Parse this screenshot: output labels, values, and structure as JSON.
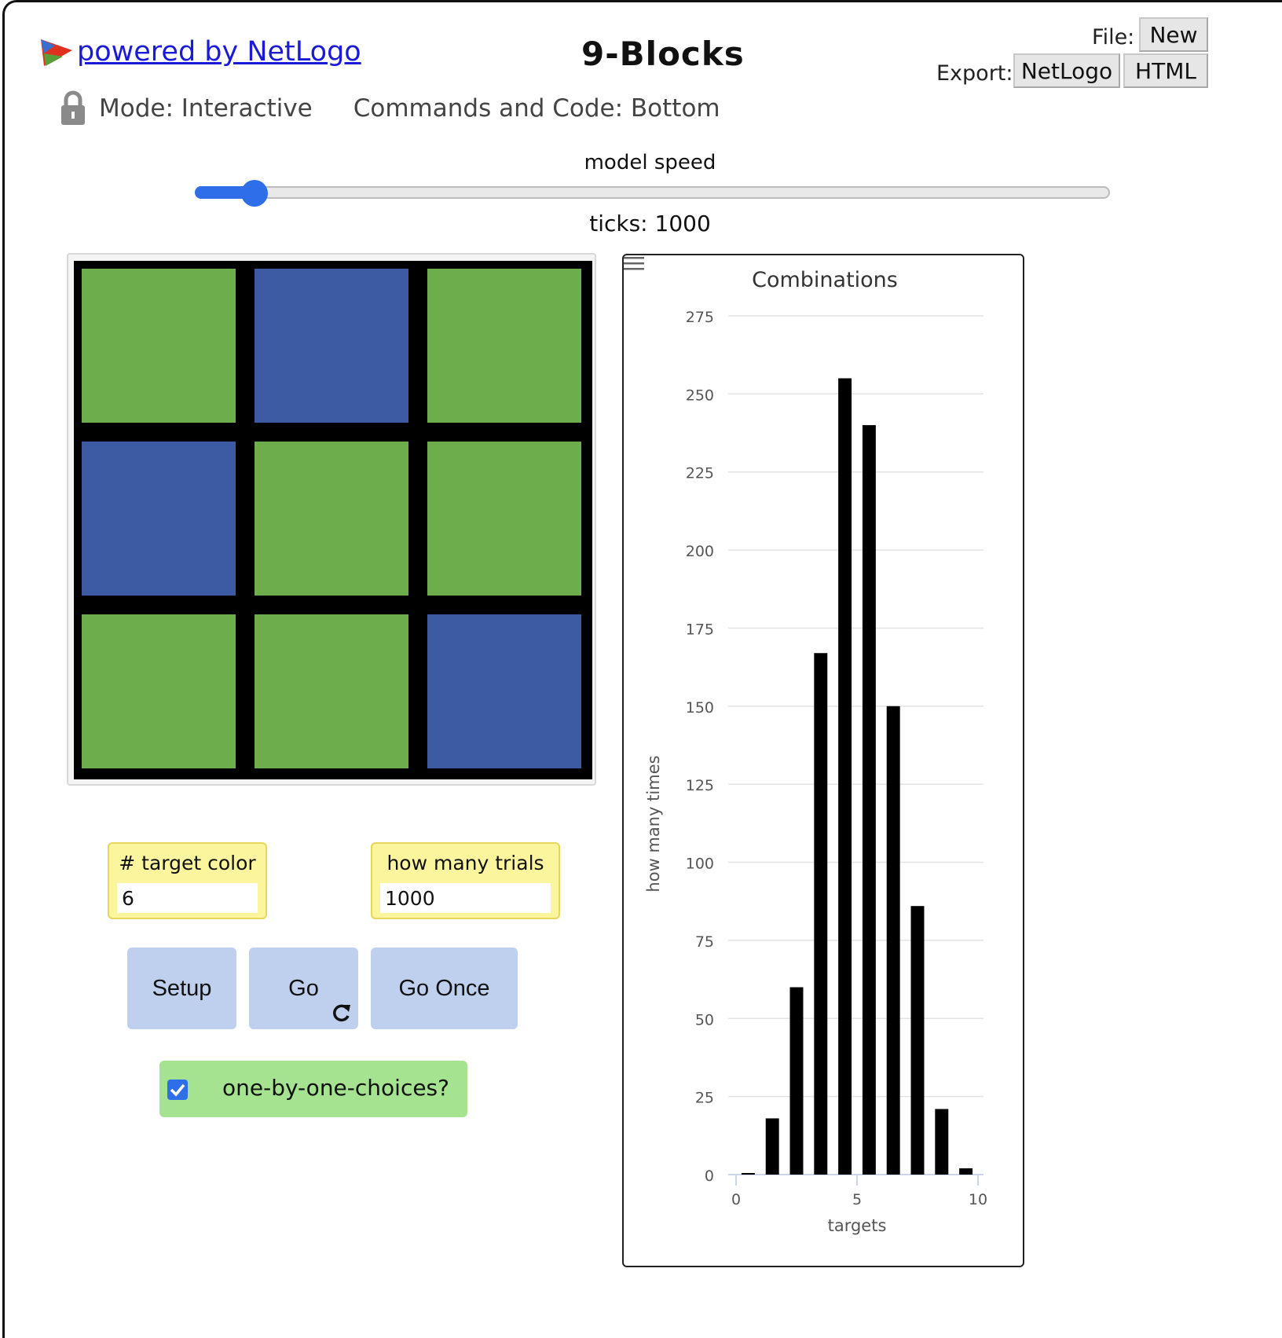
{
  "header": {
    "powered_label": "powered by NetLogo",
    "title": "9-Blocks",
    "file_label": "File:",
    "new_button": "New",
    "export_label": "Export:",
    "export_netlogo": "NetLogo",
    "export_html": "HTML",
    "mode_label": "Mode: Interactive",
    "commands_label": "Commands and Code: Bottom"
  },
  "speed": {
    "label": "model speed",
    "value": 0.065,
    "ticks_label": "ticks: 1000"
  },
  "world": {
    "patches": [
      "green",
      "blue",
      "green",
      "blue",
      "green",
      "green",
      "green",
      "green",
      "blue"
    ],
    "colors": {
      "green": "#6dad4b",
      "blue": "#3d5ba3",
      "border": "#000000"
    }
  },
  "inputs": {
    "target_color": {
      "label": "# target color",
      "value": "6"
    },
    "trials": {
      "label": "how many trials",
      "value": "1000"
    }
  },
  "buttons": {
    "setup": "Setup",
    "go": "Go",
    "go_once": "Go Once"
  },
  "switch": {
    "label": "one-by-one-choices?",
    "checked": true
  },
  "chart_data": {
    "type": "bar",
    "title": "Combinations",
    "xlabel": "targets",
    "ylabel": "how many times",
    "xlim": [
      0,
      10
    ],
    "ylim": [
      0,
      275
    ],
    "x_ticks": [
      0,
      5,
      10
    ],
    "y_ticks": [
      0,
      25,
      50,
      75,
      100,
      125,
      150,
      175,
      200,
      225,
      250,
      275
    ],
    "x": [
      0,
      1,
      2,
      3,
      4,
      5,
      6,
      7,
      8,
      9
    ],
    "values": [
      0.5,
      18,
      60,
      167,
      255,
      240,
      150,
      86,
      21,
      2
    ],
    "bar_color": "#000000",
    "grid": true
  }
}
